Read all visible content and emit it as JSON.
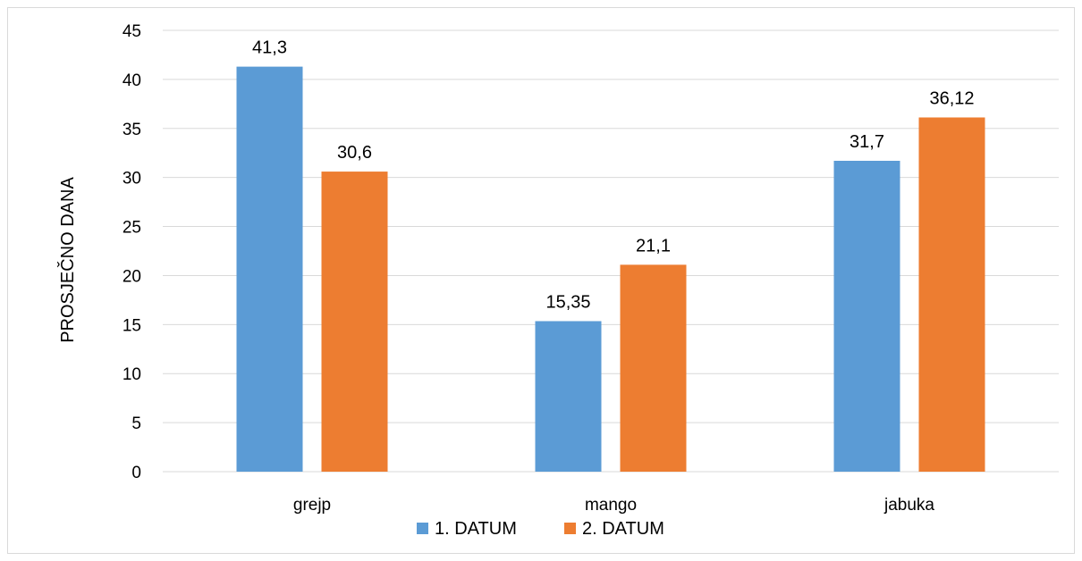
{
  "chart_data": {
    "type": "bar",
    "categories": [
      "grejp",
      "mango",
      "jabuka"
    ],
    "series": [
      {
        "name": "1. DATUM",
        "values": [
          41.3,
          15.35,
          31.7
        ],
        "labels": [
          "41,3",
          "15,35",
          "31,7"
        ],
        "color": "#5b9bd5"
      },
      {
        "name": "2. DATUM",
        "values": [
          30.6,
          21.1,
          36.12
        ],
        "labels": [
          "30,6",
          "21,1",
          "36,12"
        ],
        "color": "#ed7d31"
      }
    ],
    "ylabel": "PROSJEČNO DANA",
    "xlabel": "",
    "ylim": [
      0,
      45
    ],
    "yticks": [
      0,
      5,
      10,
      15,
      20,
      25,
      30,
      35,
      40,
      45
    ],
    "grid": true,
    "gridColor": "#d9d9d9",
    "legend": "bottom"
  }
}
